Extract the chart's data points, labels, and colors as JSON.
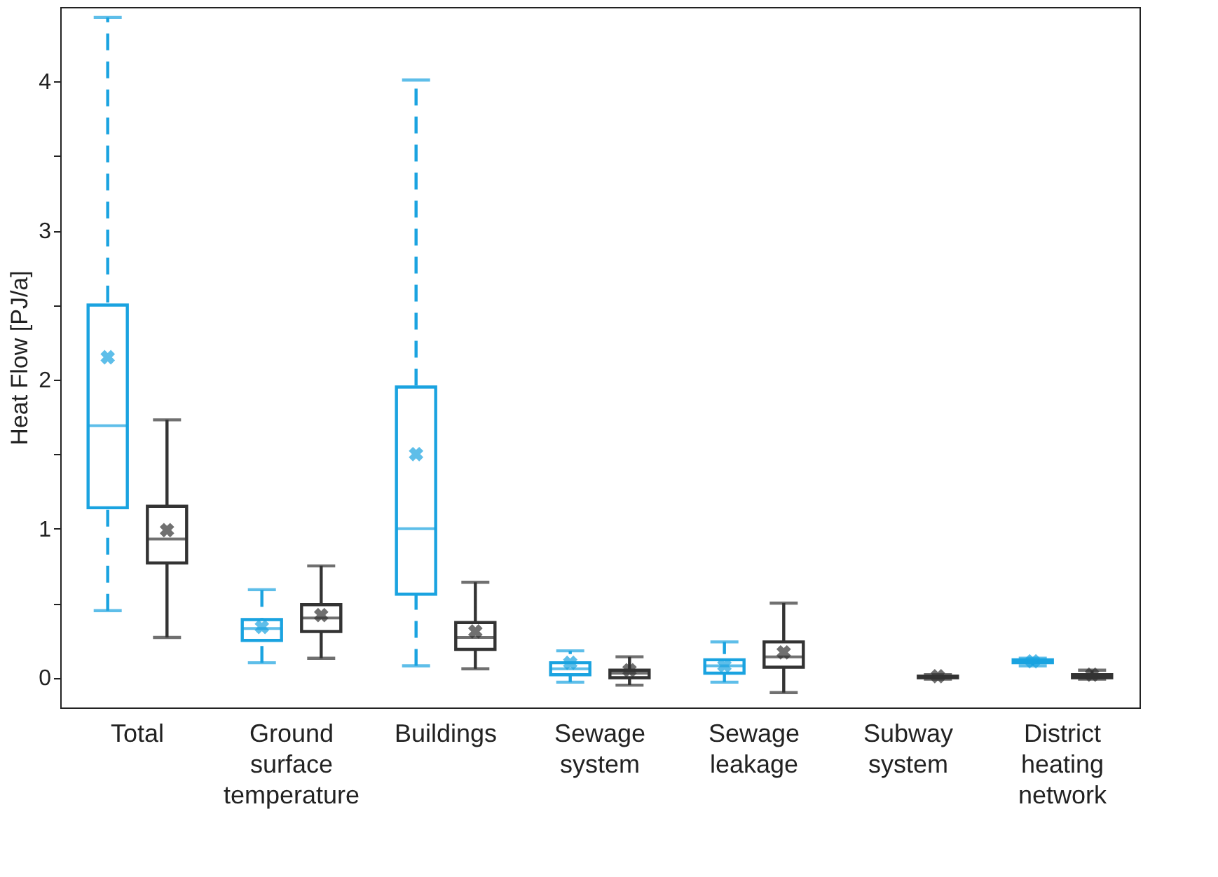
{
  "chart_data": {
    "type": "box",
    "ylabel": "Heat Flow [PJ/a]",
    "categories": [
      "Total",
      "Ground\nsurface\ntemperature",
      "Buildings",
      "Sewage\nsystem",
      "Sewage\nleakage",
      "Subway\nsystem",
      "District\nheating\nnetwork"
    ],
    "ylim": [
      -0.2,
      4.5
    ],
    "yticks": [
      0,
      {
        "value": 0.5,
        "label": null
      },
      1,
      {
        "value": 1.5,
        "label": null
      },
      2,
      {
        "value": 2.5,
        "label": null
      },
      3,
      {
        "value": 3.5,
        "label": null
      },
      4
    ],
    "grid": false,
    "marker": "cross",
    "series": [
      {
        "color": "#1aa3e0",
        "line_style": "dashed",
        "boxes": [
          {
            "low": 0.45,
            "q1": 1.14,
            "median": 1.69,
            "q3": 2.5,
            "high": 4.43,
            "mean": 2.15
          },
          {
            "low": 0.1,
            "q1": 0.25,
            "median": 0.33,
            "q3": 0.39,
            "high": 0.59,
            "mean": 0.34
          },
          {
            "low": 0.08,
            "q1": 0.56,
            "median": 1.0,
            "q3": 1.95,
            "high": 4.01,
            "mean": 1.5
          },
          {
            "low": -0.03,
            "q1": 0.02,
            "median": 0.06,
            "q3": 0.1,
            "high": 0.18,
            "mean": 0.1
          },
          {
            "low": -0.03,
            "q1": 0.03,
            "median": 0.08,
            "q3": 0.12,
            "high": 0.24,
            "mean": 0.08
          },
          null,
          {
            "low": 0.08,
            "q1": 0.1,
            "median": 0.11,
            "q3": 0.12,
            "high": 0.13,
            "mean": 0.11
          }
        ]
      },
      {
        "color": "#333333",
        "line_style": "solid",
        "boxes": [
          {
            "low": 0.27,
            "q1": 0.77,
            "median": 0.93,
            "q3": 1.15,
            "high": 1.73,
            "mean": 0.99
          },
          {
            "low": 0.13,
            "q1": 0.31,
            "median": 0.4,
            "q3": 0.49,
            "high": 0.75,
            "mean": 0.42
          },
          {
            "low": 0.06,
            "q1": 0.19,
            "median": 0.27,
            "q3": 0.37,
            "high": 0.64,
            "mean": 0.31
          },
          {
            "low": -0.05,
            "q1": 0.0,
            "median": 0.03,
            "q3": 0.05,
            "high": 0.14,
            "mean": 0.05
          },
          {
            "low": -0.1,
            "q1": 0.07,
            "median": 0.14,
            "q3": 0.24,
            "high": 0.5,
            "mean": 0.17
          },
          {
            "low": -0.01,
            "q1": 0.0,
            "median": 0.01,
            "q3": 0.01,
            "high": 0.02,
            "mean": 0.01
          },
          {
            "low": -0.01,
            "q1": 0.0,
            "median": 0.01,
            "q3": 0.02,
            "high": 0.05,
            "mean": 0.02
          }
        ]
      }
    ]
  }
}
